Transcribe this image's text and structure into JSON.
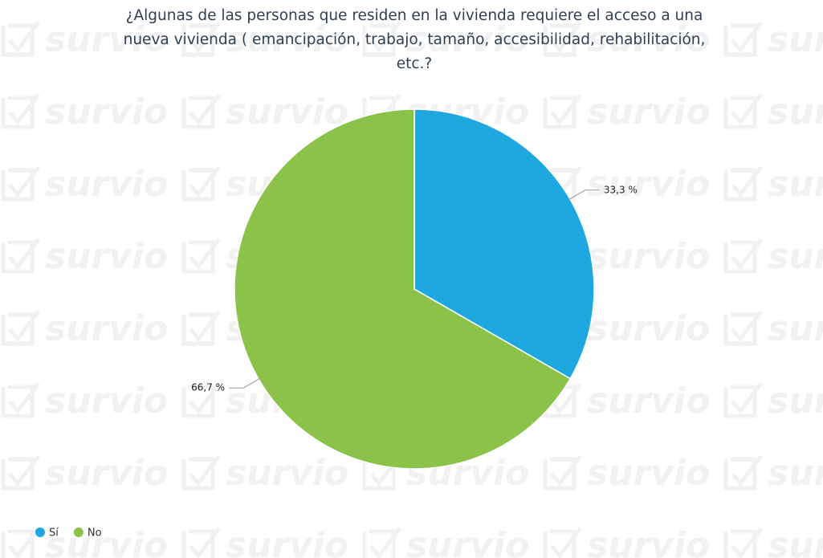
{
  "chart_data": {
    "type": "pie",
    "title": [
      "¿Algunas de las personas que residen en la vivienda requiere el acceso a una",
      "nueva vivienda ( emancipación, trabajo, tamaño, accesibilidad, rehabilitación,",
      "etc.?"
    ],
    "categories": [
      "Sí",
      "No"
    ],
    "values": [
      33.3,
      66.7
    ],
    "value_labels": [
      "33,3 %",
      "66,7 %"
    ],
    "colors": [
      "#1fa8e0",
      "#8bc34a"
    ],
    "legend": "bottom-left",
    "watermark": "survio"
  }
}
